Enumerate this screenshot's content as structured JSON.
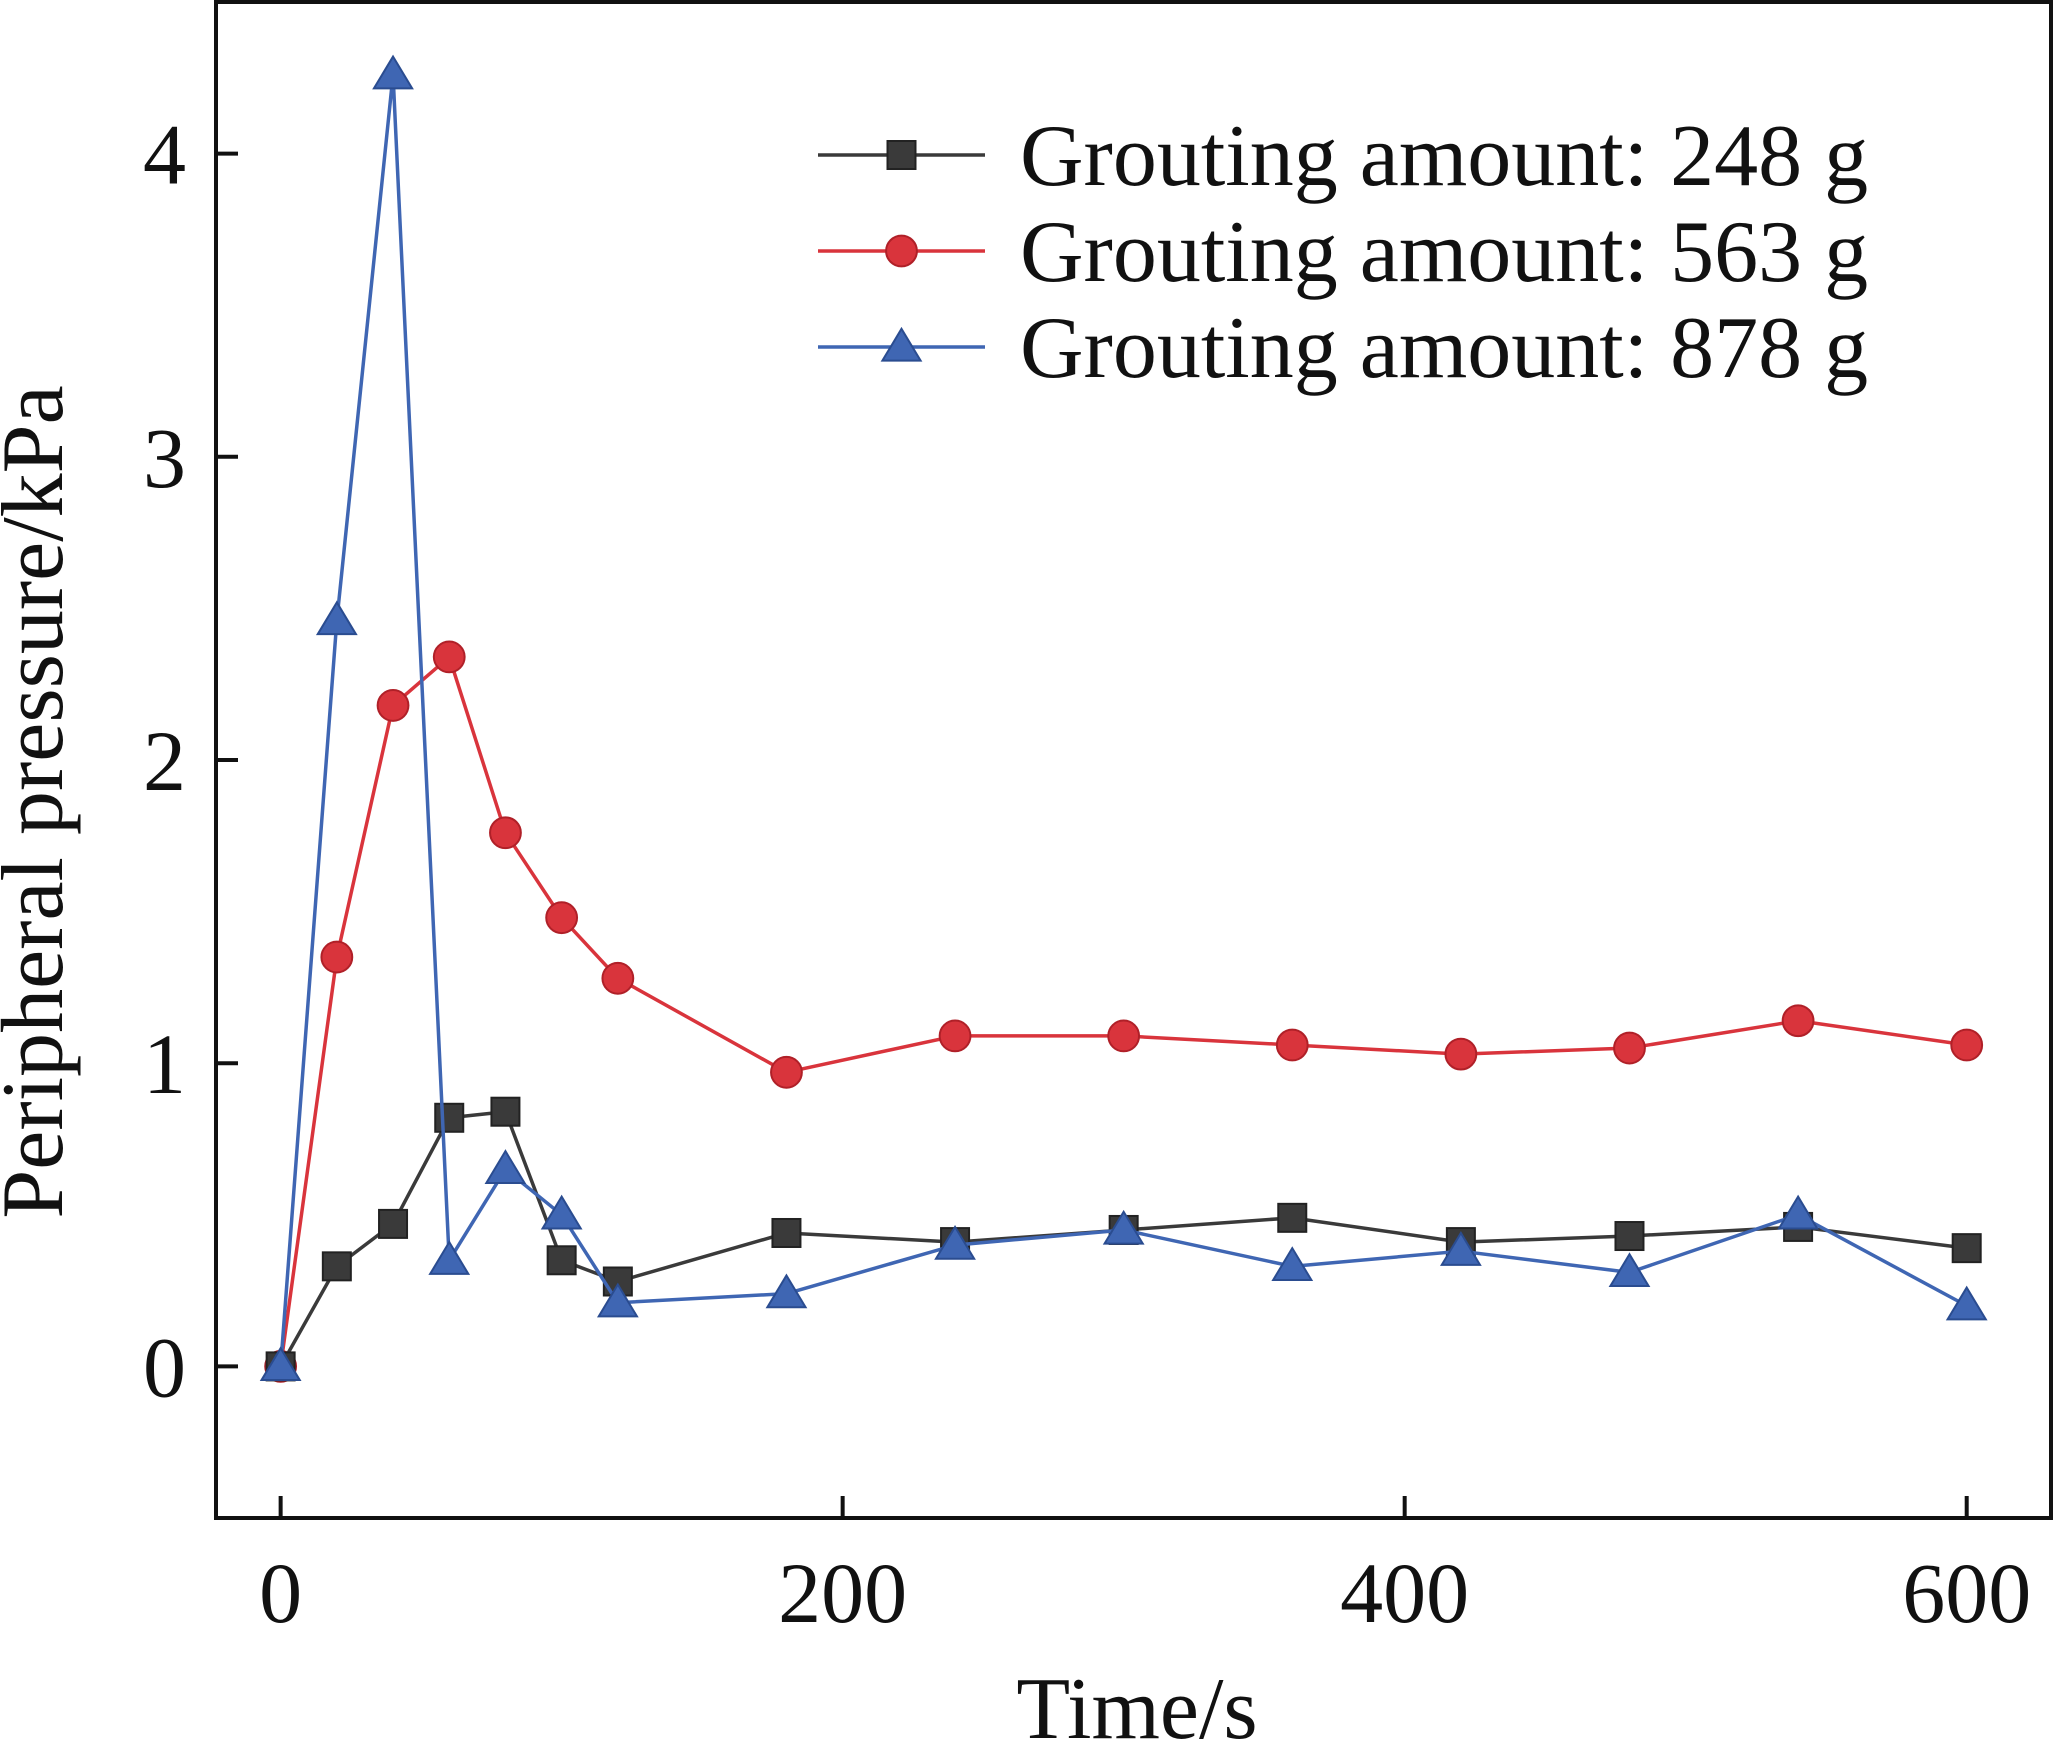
{
  "chart_data": {
    "type": "line",
    "title": "",
    "xlabel": "Time/s",
    "ylabel": "Peripheral pressure/kPa",
    "xlim": [
      -23,
      630
    ],
    "ylim": [
      -0.5,
      4.5
    ],
    "xticks": [
      0,
      200,
      400,
      600
    ],
    "yticks": [
      0,
      1,
      2,
      3,
      4
    ],
    "grid": false,
    "legend_position": "top-right",
    "series": [
      {
        "name": "Grouting amount: 248 g",
        "color": "#3a3a3a",
        "marker": "square",
        "x": [
          0,
          20,
          40,
          60,
          80,
          100,
          120,
          180,
          240,
          300,
          360,
          420,
          480,
          540,
          600
        ],
        "y": [
          0,
          0.33,
          0.47,
          0.82,
          0.84,
          0.35,
          0.28,
          0.44,
          0.41,
          0.45,
          0.49,
          0.41,
          0.43,
          0.46,
          0.39
        ]
      },
      {
        "name": "Grouting amount: 563 g",
        "color": "#d9343c",
        "marker": "circle",
        "x": [
          0,
          20,
          40,
          60,
          80,
          100,
          120,
          180,
          240,
          300,
          360,
          420,
          480,
          540,
          600
        ],
        "y": [
          0,
          1.35,
          2.18,
          2.34,
          1.76,
          1.48,
          1.28,
          0.97,
          1.09,
          1.09,
          1.06,
          1.03,
          1.05,
          1.14,
          1.06
        ]
      },
      {
        "name": "Grouting amount: 878 g",
        "color": "#3f66b3",
        "marker": "triangle",
        "x": [
          0,
          20,
          40,
          60,
          80,
          100,
          120,
          180,
          240,
          300,
          360,
          420,
          480,
          540,
          600
        ],
        "y": [
          0,
          2.46,
          4.26,
          0.35,
          0.65,
          0.5,
          0.21,
          0.24,
          0.4,
          0.45,
          0.33,
          0.38,
          0.31,
          0.5,
          0.2
        ]
      }
    ]
  }
}
